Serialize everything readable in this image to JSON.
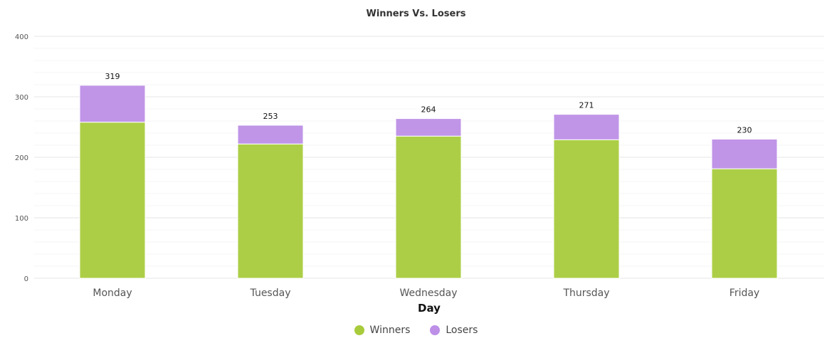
{
  "chart_data": {
    "type": "bar",
    "stacked": true,
    "title": "Winners Vs. Losers",
    "xlabel": "Day",
    "ylabel": "",
    "ylim": [
      0,
      400
    ],
    "yticks": [
      "0",
      "100",
      "200",
      "300",
      "400"
    ],
    "categories": [
      "Monday",
      "Tuesday",
      "Wednesday",
      "Thursday",
      "Friday"
    ],
    "series": [
      {
        "name": "Winners",
        "color": "#a8cb3c",
        "values": [
          258,
          222,
          235,
          229,
          181
        ]
      },
      {
        "name": "Losers",
        "color": "#bd8fe6",
        "values": [
          61,
          31,
          29,
          42,
          49
        ]
      }
    ],
    "totals": [
      "319",
      "253",
      "264",
      "271",
      "230"
    ],
    "grid": true,
    "legend_position": "bottom-center"
  }
}
